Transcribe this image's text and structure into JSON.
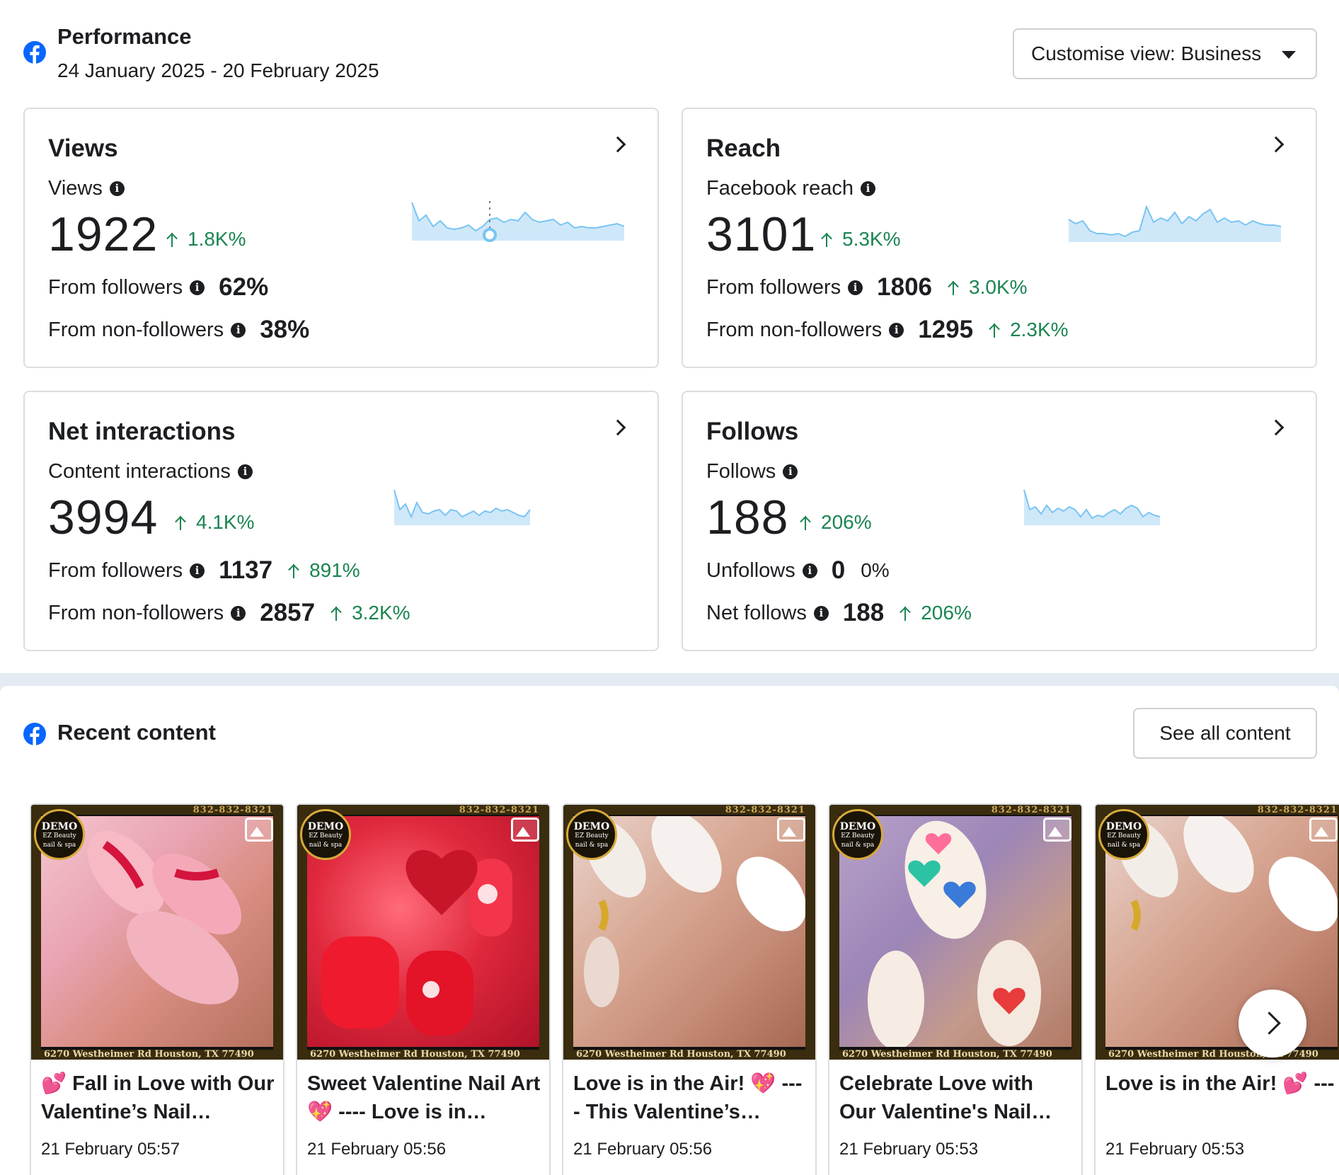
{
  "performance": {
    "title": "Performance",
    "date_range": "24 January 2025 - 20 February 2025",
    "customise_label": "Customise view: Business"
  },
  "cards": {
    "views": {
      "title": "Views",
      "metric_label": "Views",
      "value": "1922",
      "delta": "1.8K%",
      "row1_label": "From followers",
      "row1_value": "62%",
      "row2_label": "From non-followers",
      "row2_value": "38%"
    },
    "reach": {
      "title": "Reach",
      "metric_label": "Facebook reach",
      "value": "3101",
      "delta": "5.3K%",
      "row1_label": "From followers",
      "row1_value": "1806",
      "row1_delta": "3.0K%",
      "row2_label": "From non-followers",
      "row2_value": "1295",
      "row2_delta": "2.3K%"
    },
    "interactions": {
      "title": "Net interactions",
      "metric_label": "Content interactions",
      "value": "3994",
      "delta": "4.1K%",
      "row1_label": "From followers",
      "row1_value": "1137",
      "row1_delta": "891%",
      "row2_label": "From non-followers",
      "row2_value": "2857",
      "row2_delta": "3.2K%"
    },
    "follows": {
      "title": "Follows",
      "metric_label": "Follows",
      "value": "188",
      "delta": "206%",
      "row1_label": "Unfollows",
      "row1_value": "0",
      "row1_delta": "0%",
      "row2_label": "Net follows",
      "row2_value": "188",
      "row2_delta": "206%"
    }
  },
  "info_glyph": "i",
  "recent": {
    "title": "Recent content",
    "see_all_label": "See all content",
    "thumb_phone": "832-832-8321",
    "thumb_address": "6270 Westheimer Rd Houston, TX 77490",
    "thumb_logo": "DEMO",
    "thumb_logo_sub": "EZ Beauty nail & spa",
    "posts": [
      {
        "text": "💕 Fall in Love with Our Valentine’s Nail…",
        "date": "21 February 05:57"
      },
      {
        "text": "Sweet Valentine Nail Art 💖 ---- Love is in…",
        "date": "21 February 05:56"
      },
      {
        "text": "Love is in the Air! 💖 ---- This Valentine’s…",
        "date": "21 February 05:56"
      },
      {
        "text": "Celebrate Love with Our Valentine's Nail…",
        "date": "21 February 05:53"
      },
      {
        "text": "Love is in the Air! 💕 --- Get ready to dazzle.",
        "date": "21 February 05:53"
      }
    ]
  },
  "colors": {
    "brand": "#0866ff",
    "positive": "#1a8551",
    "spark_fill": "#cfe8f9",
    "spark_line": "#79c4f2"
  }
}
